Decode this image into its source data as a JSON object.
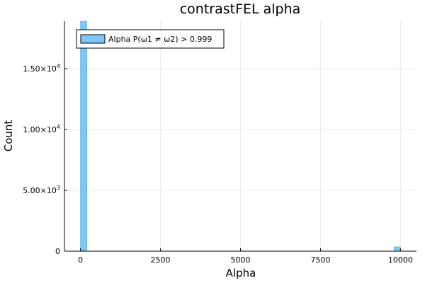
{
  "chart_data": {
    "type": "bar",
    "title": "contrastFEL alpha",
    "xlabel": "Alpha",
    "ylabel": "Count",
    "xlim": [
      -500,
      10500
    ],
    "ylim": [
      0,
      18900
    ],
    "x_ticks": [
      0,
      2500,
      5000,
      7500,
      10000
    ],
    "x_tick_labels": [
      "0",
      "2500",
      "5000",
      "7500",
      "10000"
    ],
    "y_ticks": [
      0,
      5000,
      10000,
      15000
    ],
    "y_tick_labels": [
      {
        "mantissa": "0",
        "exp": ""
      },
      {
        "mantissa": "5.00×10",
        "exp": "3"
      },
      {
        "mantissa": "1.00×10",
        "exp": "4"
      },
      {
        "mantissa": "1.50×10",
        "exp": "4"
      }
    ],
    "bin_width": 200,
    "bins": [
      {
        "start": 0,
        "end": 200,
        "count": 19000
      },
      {
        "start": 9800,
        "end": 10000,
        "count": 350
      }
    ],
    "grid": true,
    "legend_position": "top-left",
    "series": [
      {
        "name": "Alpha P(ω1 ≠ ω2) > 0.999",
        "color": "#7ec6f5"
      }
    ]
  }
}
